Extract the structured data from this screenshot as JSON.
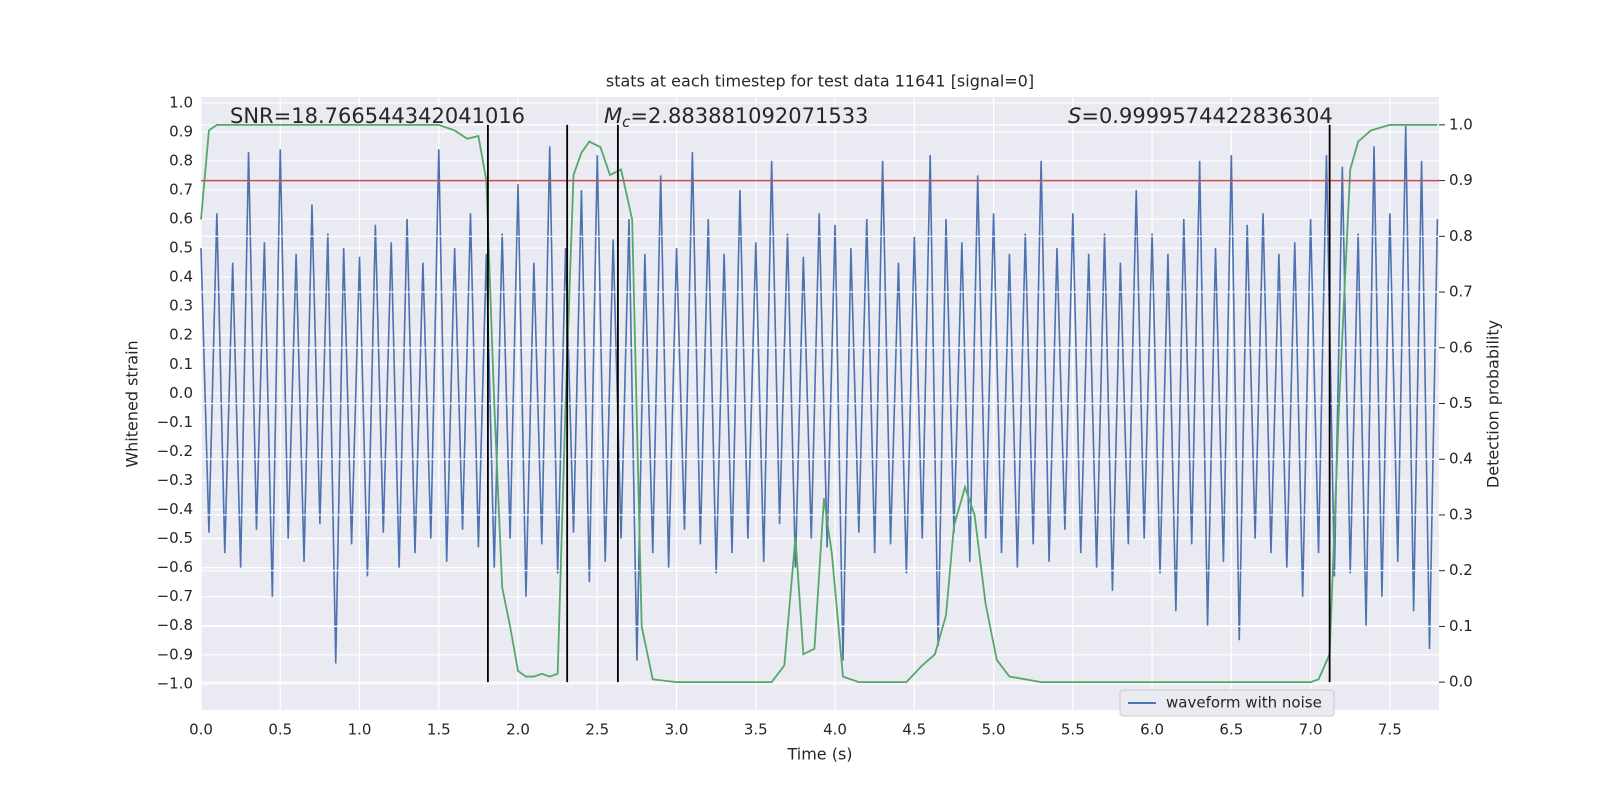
{
  "chart_data": {
    "type": "line",
    "title": "stats at each timestep for test data 11641 [signal=0]",
    "x_label": "Time (s)",
    "y_label": "Whitened strain",
    "y2_label": "Detection probability",
    "xlim": [
      0,
      7.81
    ],
    "ylim": [
      -1.09,
      1.02
    ],
    "y2lim": [
      -0.05,
      1.05
    ],
    "xticks": [
      {
        "value": 0,
        "label": "0.0"
      },
      {
        "value": 0.5,
        "label": "0.5"
      },
      {
        "value": 1,
        "label": "1.0"
      },
      {
        "value": 1.5,
        "label": "1.5"
      },
      {
        "value": 2,
        "label": "2.0"
      },
      {
        "value": 2.5,
        "label": "2.5"
      },
      {
        "value": 3,
        "label": "3.0"
      },
      {
        "value": 3.5,
        "label": "3.5"
      },
      {
        "value": 4,
        "label": "4.0"
      },
      {
        "value": 4.5,
        "label": "4.5"
      },
      {
        "value": 5,
        "label": "5.0"
      },
      {
        "value": 5.5,
        "label": "5.5"
      },
      {
        "value": 6,
        "label": "6.0"
      },
      {
        "value": 6.5,
        "label": "6.5"
      },
      {
        "value": 7,
        "label": "7.0"
      },
      {
        "value": 7.5,
        "label": "7.5"
      }
    ],
    "yticks": [
      {
        "value": -1,
        "label": "−1.0"
      },
      {
        "value": -0.9,
        "label": "−0.9"
      },
      {
        "value": -0.8,
        "label": "−0.8"
      },
      {
        "value": -0.7,
        "label": "−0.7"
      },
      {
        "value": -0.6,
        "label": "−0.6"
      },
      {
        "value": -0.5,
        "label": "−0.5"
      },
      {
        "value": -0.4,
        "label": "−0.4"
      },
      {
        "value": -0.3,
        "label": "−0.3"
      },
      {
        "value": -0.2,
        "label": "−0.2"
      },
      {
        "value": -0.1,
        "label": "−0.1"
      },
      {
        "value": 0,
        "label": "0.0"
      },
      {
        "value": 0.1,
        "label": "0.1"
      },
      {
        "value": 0.2,
        "label": "0.2"
      },
      {
        "value": 0.3,
        "label": "0.3"
      },
      {
        "value": 0.4,
        "label": "0.4"
      },
      {
        "value": 0.5,
        "label": "0.5"
      },
      {
        "value": 0.6,
        "label": "0.6"
      },
      {
        "value": 0.7,
        "label": "0.7"
      },
      {
        "value": 0.8,
        "label": "0.8"
      },
      {
        "value": 0.9,
        "label": "0.9"
      },
      {
        "value": 1,
        "label": "1.0"
      }
    ],
    "y2ticks": [
      {
        "value": 0,
        "label": "0.0"
      },
      {
        "value": 0.1,
        "label": "0.1"
      },
      {
        "value": 0.2,
        "label": "0.2"
      },
      {
        "value": 0.3,
        "label": "0.3"
      },
      {
        "value": 0.4,
        "label": "0.4"
      },
      {
        "value": 0.5,
        "label": "0.5"
      },
      {
        "value": 0.6,
        "label": "0.6"
      },
      {
        "value": 0.7,
        "label": "0.7"
      },
      {
        "value": 0.8,
        "label": "0.8"
      },
      {
        "value": 0.9,
        "label": "0.9"
      },
      {
        "value": 1,
        "label": "1.0"
      }
    ],
    "grid": true,
    "legend": "lower right",
    "series": [
      {
        "name": "waveform with noise",
        "color": "#4c72b0",
        "axis": "y",
        "x": [
          0,
          0.05,
          0.1,
          0.15,
          0.2,
          0.25,
          0.3,
          0.35,
          0.4,
          0.45,
          0.5,
          0.55,
          0.6,
          0.65,
          0.7,
          0.75,
          0.8,
          0.85,
          0.9,
          0.95,
          1,
          1.05,
          1.1,
          1.15,
          1.2,
          1.25,
          1.3,
          1.35,
          1.4,
          1.45,
          1.5,
          1.55,
          1.6,
          1.65,
          1.7,
          1.75,
          1.8,
          1.85,
          1.9,
          1.95,
          2,
          2.05,
          2.1,
          2.15,
          2.2,
          2.25,
          2.3,
          2.35,
          2.4,
          2.45,
          2.5,
          2.55,
          2.6,
          2.65,
          2.7,
          2.75,
          2.8,
          2.85,
          2.9,
          2.95,
          3,
          3.05,
          3.1,
          3.15,
          3.2,
          3.25,
          3.3,
          3.35,
          3.4,
          3.45,
          3.5,
          3.55,
          3.6,
          3.65,
          3.7,
          3.75,
          3.8,
          3.85,
          3.9,
          3.95,
          4,
          4.05,
          4.1,
          4.15,
          4.2,
          4.25,
          4.3,
          4.35,
          4.4,
          4.45,
          4.5,
          4.55,
          4.6,
          4.65,
          4.7,
          4.75,
          4.8,
          4.85,
          4.9,
          4.95,
          5,
          5.05,
          5.1,
          5.15,
          5.2,
          5.25,
          5.3,
          5.35,
          5.4,
          5.45,
          5.5,
          5.55,
          5.6,
          5.65,
          5.7,
          5.75,
          5.8,
          5.85,
          5.9,
          5.95,
          6,
          6.05,
          6.1,
          6.15,
          6.2,
          6.25,
          6.3,
          6.35,
          6.4,
          6.45,
          6.5,
          6.55,
          6.6,
          6.65,
          6.7,
          6.75,
          6.8,
          6.85,
          6.9,
          6.95,
          7,
          7.05,
          7.1,
          7.15,
          7.2,
          7.25,
          7.3,
          7.35,
          7.4,
          7.45,
          7.5,
          7.55,
          7.6,
          7.65,
          7.7,
          7.75,
          7.8
        ],
        "values": [
          0.5,
          -0.48,
          0.62,
          -0.55,
          0.45,
          -0.6,
          0.83,
          -0.47,
          0.52,
          -0.7,
          0.84,
          -0.5,
          0.48,
          -0.58,
          0.65,
          -0.45,
          0.55,
          -0.93,
          0.5,
          -0.52,
          0.47,
          -0.63,
          0.58,
          -0.48,
          0.52,
          -0.6,
          0.6,
          -0.55,
          0.45,
          -0.5,
          0.84,
          -0.58,
          0.5,
          -0.47,
          0.62,
          -0.53,
          0.48,
          -0.6,
          0.55,
          -0.5,
          0.72,
          -0.7,
          0.45,
          -0.52,
          0.85,
          -0.62,
          0.5,
          -0.48,
          0.7,
          -0.65,
          0.82,
          -0.58,
          0.53,
          -0.5,
          0.6,
          -0.92,
          0.48,
          -0.55,
          0.75,
          -0.6,
          0.5,
          -0.47,
          0.83,
          -0.52,
          0.6,
          -0.62,
          0.48,
          -0.55,
          0.7,
          -0.5,
          0.52,
          -0.58,
          0.8,
          -0.45,
          0.55,
          -0.6,
          0.47,
          -0.5,
          0.62,
          -0.53,
          0.58,
          -0.92,
          0.5,
          -0.48,
          0.6,
          -0.55,
          0.8,
          -0.52,
          0.45,
          -0.62,
          0.54,
          -0.5,
          0.82,
          -0.87,
          0.6,
          -0.48,
          0.52,
          -0.58,
          0.75,
          -0.5,
          0.62,
          -0.55,
          0.48,
          -0.6,
          0.55,
          -0.52,
          0.8,
          -0.58,
          0.5,
          -0.47,
          0.62,
          -0.55,
          0.48,
          -0.6,
          0.55,
          -0.68,
          0.45,
          -0.52,
          0.7,
          -0.5,
          0.55,
          -0.62,
          0.48,
          -0.75,
          0.6,
          -0.52,
          0.8,
          -0.8,
          0.5,
          -0.58,
          0.82,
          -0.85,
          0.58,
          -0.5,
          0.62,
          -0.55,
          0.48,
          -0.6,
          0.52,
          -0.7,
          0.6,
          -0.55,
          0.82,
          -0.63,
          0.78,
          -0.62,
          0.55,
          -0.8,
          0.85,
          -0.7,
          0.62,
          -0.58,
          0.92,
          -0.75,
          0.8,
          -0.88,
          0.6
        ]
      },
      {
        "color": "#55a868",
        "axis": "y2",
        "x": [
          0,
          0.05,
          0.1,
          0.15,
          0.5,
          1,
          1.5,
          1.6,
          1.68,
          1.75,
          1.8,
          1.85,
          1.9,
          1.95,
          2,
          2.05,
          2.1,
          2.15,
          2.2,
          2.25,
          2.3,
          2.35,
          2.4,
          2.45,
          2.52,
          2.58,
          2.65,
          2.72,
          2.78,
          2.85,
          3,
          3.6,
          3.68,
          3.75,
          3.8,
          3.87,
          3.93,
          3.98,
          4.05,
          4.15,
          4.45,
          4.55,
          4.63,
          4.7,
          4.75,
          4.82,
          4.88,
          4.95,
          5.02,
          5.1,
          5.3,
          7,
          7.05,
          7.12,
          7.18,
          7.25,
          7.3,
          7.38,
          7.5,
          7.8
        ],
        "values": [
          0.83,
          0.99,
          1,
          1,
          1,
          1,
          1,
          0.99,
          0.975,
          0.98,
          0.9,
          0.5,
          0.17,
          0.1,
          0.02,
          0.01,
          0.01,
          0.015,
          0.01,
          0.015,
          0.5,
          0.91,
          0.95,
          0.97,
          0.96,
          0.91,
          0.92,
          0.83,
          0.1,
          0.005,
          0,
          0,
          0.03,
          0.26,
          0.05,
          0.06,
          0.33,
          0.23,
          0.01,
          0,
          0,
          0.03,
          0.05,
          0.12,
          0.28,
          0.35,
          0.3,
          0.14,
          0.04,
          0.01,
          0,
          0,
          0.005,
          0.05,
          0.5,
          0.92,
          0.97,
          0.99,
          1,
          1
        ]
      }
    ],
    "hlines": [
      {
        "y": 0.9,
        "axis": "y2",
        "color": "#c44e52"
      }
    ],
    "vlines": {
      "x": [
        1.81,
        2.31,
        2.63,
        7.12
      ],
      "ymin": 0,
      "ymax": 1,
      "axis": "y2",
      "color": "#000000"
    },
    "annotations": [
      {
        "text": "SNR=18.766544342041016"
      },
      {
        "symbol": "M",
        "subscript": "c",
        "text": "=2.883881092071533"
      },
      {
        "symbol": "S",
        "text": "=0.9999574422836304"
      }
    ]
  }
}
